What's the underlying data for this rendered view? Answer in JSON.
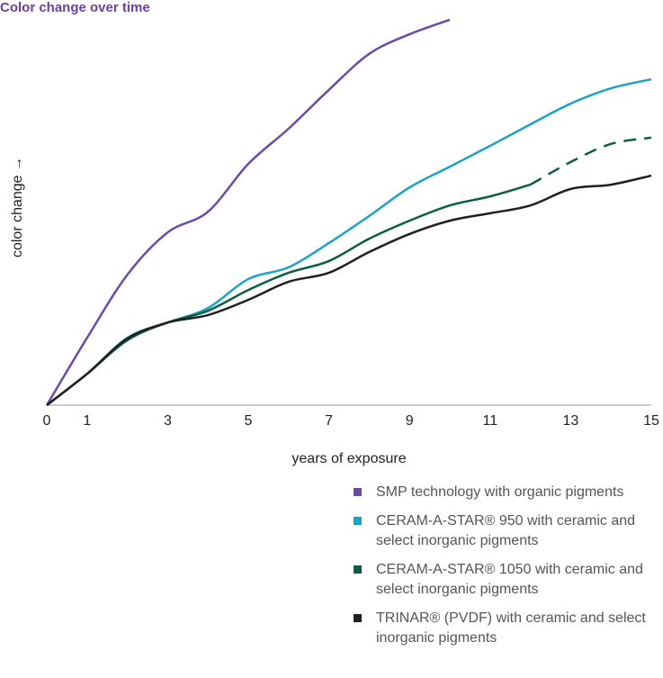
{
  "chart_data": {
    "type": "line",
    "title": "Color change over time",
    "ylabel": "color change →",
    "xlabel": "years of exposure",
    "x": [
      0,
      1,
      2,
      3,
      4,
      5,
      6,
      7,
      8,
      9,
      10,
      11,
      12,
      13,
      14,
      15
    ],
    "xlim": [
      0,
      15
    ],
    "xticks": [
      0,
      1,
      3,
      5,
      7,
      9,
      11,
      13,
      15
    ],
    "ylim": [
      0,
      100
    ],
    "series": [
      {
        "name": "SMP technology with organic pigments",
        "color": "#6b4aa8",
        "values": [
          0,
          17.2,
          33.3,
          44.1,
          49.4,
          61.6,
          70.6,
          80.5,
          89.7,
          94.7,
          98.4,
          null,
          null,
          null,
          null,
          null
        ]
      },
      {
        "name": "CERAM-A-STAR® 950 with ceramic and select inorganic pigments",
        "color": "#1aa3c6",
        "values": [
          0,
          8.0,
          17.2,
          21.1,
          24.8,
          32.2,
          35.2,
          41.4,
          48.3,
          55.6,
          60.9,
          66.2,
          71.7,
          77.0,
          80.9,
          83.2
        ]
      },
      {
        "name": "CERAM-A-STAR® 1050 with ceramic and select inorganic pigments",
        "color": "#0b5e45",
        "dashed_from": 12,
        "values": [
          0,
          8.0,
          16.6,
          21.1,
          24.1,
          29.4,
          33.8,
          36.8,
          42.5,
          47.1,
          51.0,
          53.3,
          56.3,
          62.1,
          66.7,
          68.3
        ]
      },
      {
        "name": "TRINAR® (PVDF) with ceramic and select inorganic pigments",
        "color": "#231f20",
        "values": [
          0,
          8.0,
          17.0,
          21.1,
          23.0,
          26.9,
          31.5,
          33.8,
          39.1,
          43.7,
          47.1,
          49.0,
          51.0,
          55.2,
          56.3,
          58.6
        ]
      }
    ]
  }
}
